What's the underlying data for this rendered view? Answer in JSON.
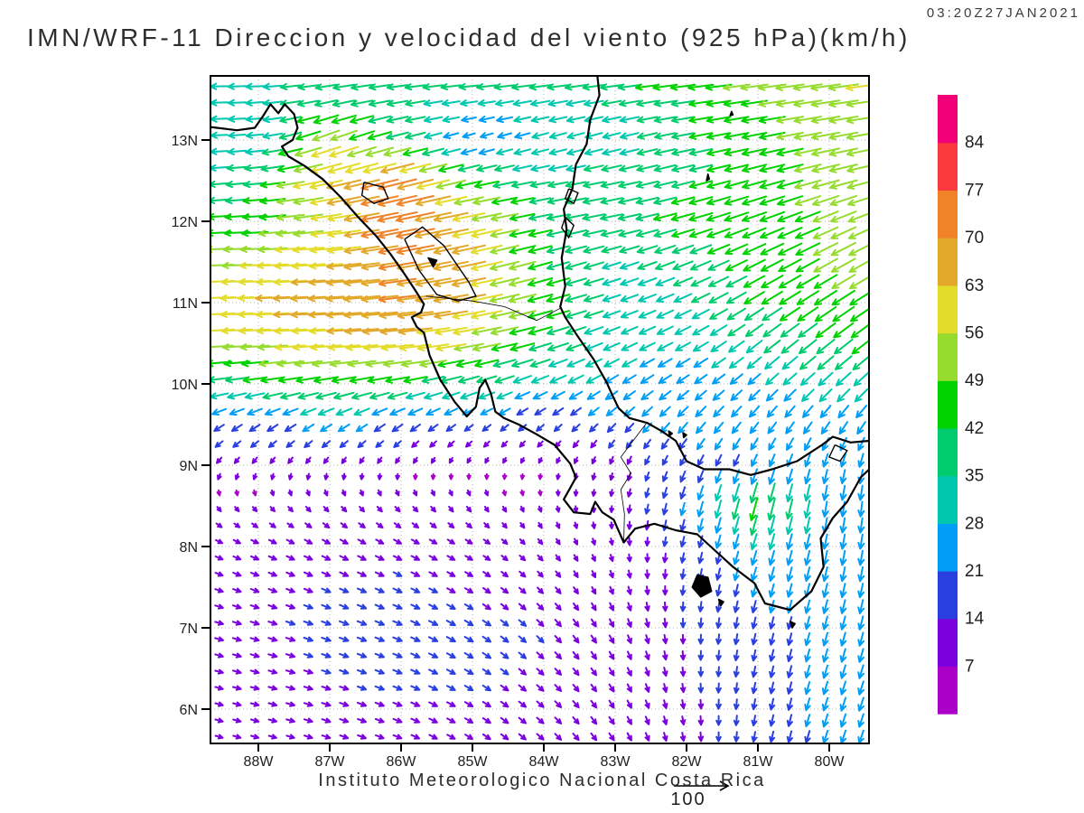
{
  "header": {
    "timestamp": "03:20Z27JAN2021",
    "title": "IMN/WRF-11 Direccion y velocidad del viento (925 hPa)(km/h)"
  },
  "footer": {
    "institution": "Instituto Meteorologico Nacional Costa Rica",
    "reference_value": "100"
  },
  "axes": {
    "lat_labels": [
      "13N",
      "12N",
      "11N",
      "10N",
      "9N",
      "8N",
      "7N",
      "6N"
    ],
    "lat_values": [
      13,
      12,
      11,
      10,
      9,
      8,
      7,
      6
    ],
    "lon_labels": [
      "88W",
      "87W",
      "86W",
      "85W",
      "84W",
      "83W",
      "82W",
      "81W",
      "80W"
    ],
    "lon_values": [
      -88,
      -87,
      -86,
      -85,
      -84,
      -83,
      -82,
      -81,
      -80
    ]
  },
  "colorbar": {
    "labels_top_to_bottom": [
      "84",
      "77",
      "70",
      "63",
      "56",
      "49",
      "42",
      "35",
      "28",
      "21",
      "14",
      "7"
    ],
    "colors_low_to_high": [
      "#AA00C8",
      "#7A00DE",
      "#2A3FE0",
      "#009EF5",
      "#00C8AE",
      "#00CC6E",
      "#00D200",
      "#95DC2E",
      "#E3DC2B",
      "#E3A92B",
      "#F08228",
      "#FA3A3C",
      "#F20077"
    ]
  },
  "chart_data": {
    "type": "vector_field",
    "title": "IMN/WRF-11 Direccion y velocidad del viento (925 hPa)(km/h)",
    "valid_time": "03:20Z27JAN2021",
    "level": "925 hPa",
    "units": "km/h",
    "lon_range": [
      -88.67,
      -79.44
    ],
    "lat_range": [
      5.58,
      13.79
    ],
    "speed_levels": [
      7,
      14,
      21,
      28,
      35,
      42,
      49,
      56,
      63,
      70,
      77,
      84
    ],
    "reference_speed": 100,
    "arrow_step_lon": 0.25,
    "arrow_step_lat": 0.2,
    "grid_lons": [
      -89,
      -88,
      -87,
      -86,
      -85,
      -84,
      -83,
      -82,
      -81,
      -80,
      -79
    ],
    "grid_lats": [
      14,
      13.5,
      13,
      12.5,
      12,
      11.5,
      11,
      10.5,
      10,
      9.5,
      9,
      8.5,
      8,
      7,
      6,
      5.5
    ],
    "u": [
      [
        -32,
        -33,
        -36,
        -40,
        -45,
        -48,
        -50,
        -52,
        -55,
        -58,
        -60
      ],
      [
        -30,
        -32,
        -40,
        -36,
        -30,
        -34,
        -35,
        -42,
        -48,
        -53,
        -57
      ],
      [
        -28,
        -30,
        -52,
        -40,
        -18,
        -28,
        -30,
        -40,
        -45,
        -52,
        -56
      ],
      [
        -34,
        -40,
        -62,
        -72,
        -45,
        -34,
        -38,
        -40,
        -44,
        -50,
        -54
      ],
      [
        -40,
        -46,
        -56,
        -76,
        -60,
        -40,
        -40,
        -42,
        -44,
        -46,
        -48
      ],
      [
        -50,
        -56,
        -62,
        -70,
        -62,
        -42,
        -32,
        -36,
        -40,
        -44,
        -45
      ],
      [
        -60,
        -64,
        -68,
        -70,
        -62,
        -45,
        -30,
        -30,
        -36,
        -40,
        -42
      ],
      [
        -52,
        -56,
        -60,
        -62,
        -55,
        -40,
        -28,
        -26,
        -28,
        -33,
        -35
      ],
      [
        -36,
        -40,
        -42,
        -40,
        -34,
        -28,
        -22,
        -20,
        -20,
        -24,
        -26
      ],
      [
        -16,
        -18,
        -20,
        -18,
        -14,
        -12,
        -14,
        -16,
        -14,
        -14,
        -14
      ],
      [
        -6,
        -5,
        -4,
        -3,
        -2,
        -2,
        -3,
        -8,
        -8,
        -6,
        -5
      ],
      [
        4,
        5,
        6,
        6,
        5,
        2,
        -1,
        -6,
        -12,
        -4,
        -2
      ],
      [
        10,
        11,
        12,
        12,
        10,
        6,
        2,
        -4,
        -8,
        -5,
        -3
      ],
      [
        12,
        13,
        14,
        14,
        13,
        10,
        6,
        0,
        -4,
        -6,
        -6
      ],
      [
        11,
        12,
        13,
        13,
        12,
        10,
        7,
        2,
        -3,
        -7,
        -8
      ],
      [
        10,
        11,
        12,
        12,
        11,
        10,
        7,
        2,
        -3,
        -7,
        -8
      ]
    ],
    "v": [
      [
        0,
        0,
        -2,
        -3,
        -3,
        -3,
        -4,
        -5,
        -6,
        -7,
        -7
      ],
      [
        0,
        -2,
        -8,
        -6,
        -4,
        -6,
        -6,
        -6,
        -7,
        -8,
        -8
      ],
      [
        0,
        -3,
        -20,
        -10,
        -6,
        -8,
        -8,
        -8,
        -9,
        -10,
        -10
      ],
      [
        -2,
        -4,
        -14,
        -18,
        -10,
        -6,
        -8,
        -10,
        -12,
        -13,
        -13
      ],
      [
        -2,
        -3,
        -8,
        -16,
        -12,
        -8,
        -8,
        -12,
        -16,
        -19,
        -20
      ],
      [
        -2,
        -2,
        -5,
        -12,
        -14,
        -12,
        -10,
        -14,
        -20,
        -24,
        -25
      ],
      [
        -2,
        -2,
        -4,
        -8,
        -12,
        -12,
        -10,
        -14,
        -22,
        -26,
        -27
      ],
      [
        -3,
        -3,
        -4,
        -6,
        -10,
        -12,
        -12,
        -14,
        -22,
        -26,
        -27
      ],
      [
        -5,
        -6,
        -8,
        -8,
        -10,
        -12,
        -14,
        -14,
        -18,
        -22,
        -24
      ],
      [
        -10,
        -11,
        -12,
        -12,
        -10,
        -10,
        -14,
        -18,
        -18,
        -20,
        -20
      ],
      [
        -8,
        -8,
        -8,
        -7,
        -6,
        -6,
        -10,
        -16,
        -20,
        -22,
        -24
      ],
      [
        -6,
        -6,
        -7,
        -7,
        -7,
        -7,
        -9,
        -22,
        -44,
        -26,
        -26
      ],
      [
        -4,
        -5,
        -6,
        -6,
        -6,
        -7,
        -9,
        -16,
        -26,
        -25,
        -25
      ],
      [
        -3,
        -4,
        -5,
        -6,
        -8,
        -10,
        -12,
        -14,
        -18,
        -22,
        -24
      ],
      [
        -3,
        -3,
        -4,
        -5,
        -7,
        -9,
        -11,
        -13,
        -17,
        -22,
        -23
      ],
      [
        -3,
        -3,
        -4,
        -5,
        -7,
        -9,
        -11,
        -13,
        -16,
        -21,
        -22
      ]
    ]
  },
  "map": {
    "coastline_pacific": [
      [
        -88.67,
        13.16
      ],
      [
        -88.3,
        13.12
      ],
      [
        -88.05,
        13.15
      ],
      [
        -87.93,
        13.3
      ],
      [
        -87.83,
        13.44
      ],
      [
        -87.72,
        13.33
      ],
      [
        -87.63,
        13.44
      ],
      [
        -87.5,
        13.32
      ],
      [
        -87.45,
        13.15
      ],
      [
        -87.52,
        13.0
      ],
      [
        -87.67,
        12.92
      ],
      [
        -87.58,
        12.8
      ],
      [
        -87.35,
        12.68
      ],
      [
        -87.1,
        12.52
      ],
      [
        -86.85,
        12.3
      ],
      [
        -86.6,
        12.05
      ],
      [
        -86.35,
        11.82
      ],
      [
        -86.15,
        11.6
      ],
      [
        -85.95,
        11.35
      ],
      [
        -85.8,
        11.15
      ],
      [
        -85.68,
        10.98
      ],
      [
        -85.72,
        10.88
      ],
      [
        -85.85,
        10.82
      ],
      [
        -85.78,
        10.7
      ],
      [
        -85.68,
        10.63
      ],
      [
        -85.6,
        10.35
      ],
      [
        -85.45,
        10.05
      ],
      [
        -85.25,
        9.78
      ],
      [
        -85.08,
        9.6
      ],
      [
        -84.95,
        9.72
      ],
      [
        -84.9,
        9.95
      ],
      [
        -84.82,
        10.05
      ],
      [
        -84.74,
        9.88
      ],
      [
        -84.68,
        9.66
      ],
      [
        -84.56,
        9.58
      ],
      [
        -84.35,
        9.5
      ],
      [
        -84.1,
        9.38
      ],
      [
        -83.85,
        9.25
      ],
      [
        -83.63,
        9.02
      ],
      [
        -83.55,
        8.85
      ],
      [
        -83.63,
        8.72
      ],
      [
        -83.72,
        8.58
      ],
      [
        -83.58,
        8.42
      ],
      [
        -83.35,
        8.4
      ],
      [
        -83.28,
        8.55
      ],
      [
        -83.18,
        8.42
      ],
      [
        -83.02,
        8.33
      ],
      [
        -82.88,
        8.05
      ],
      [
        -82.72,
        8.22
      ],
      [
        -82.45,
        8.28
      ],
      [
        -82.15,
        8.2
      ],
      [
        -81.85,
        8.15
      ],
      [
        -81.6,
        7.95
      ],
      [
        -81.35,
        7.75
      ],
      [
        -81.05,
        7.55
      ],
      [
        -80.9,
        7.3
      ],
      [
        -80.55,
        7.22
      ],
      [
        -80.25,
        7.45
      ],
      [
        -80.08,
        7.75
      ],
      [
        -80.12,
        8.1
      ],
      [
        -79.95,
        8.35
      ],
      [
        -79.75,
        8.55
      ],
      [
        -79.56,
        8.85
      ],
      [
        -79.44,
        8.95
      ]
    ],
    "coastline_caribbean": [
      [
        -79.44,
        9.3
      ],
      [
        -79.7,
        9.28
      ],
      [
        -79.95,
        9.35
      ],
      [
        -80.1,
        9.25
      ],
      [
        -80.45,
        9.05
      ],
      [
        -80.8,
        8.95
      ],
      [
        -81.1,
        8.88
      ],
      [
        -81.4,
        8.95
      ],
      [
        -81.75,
        8.95
      ],
      [
        -82.0,
        9.05
      ],
      [
        -82.15,
        9.3
      ],
      [
        -82.35,
        9.42
      ],
      [
        -82.55,
        9.52
      ],
      [
        -82.8,
        9.58
      ],
      [
        -82.95,
        9.7
      ],
      [
        -83.05,
        9.88
      ],
      [
        -83.12,
        10.02
      ],
      [
        -83.3,
        10.3
      ],
      [
        -83.52,
        10.58
      ],
      [
        -83.7,
        10.82
      ],
      [
        -83.77,
        10.95
      ],
      [
        -83.7,
        11.2
      ],
      [
        -83.75,
        11.55
      ],
      [
        -83.68,
        11.9
      ],
      [
        -83.72,
        12.15
      ],
      [
        -83.6,
        12.4
      ],
      [
        -83.55,
        12.7
      ],
      [
        -83.4,
        12.95
      ],
      [
        -83.35,
        13.25
      ],
      [
        -83.22,
        13.55
      ],
      [
        -83.25,
        13.79
      ]
    ],
    "lakes": [
      [
        [
          -85.95,
          11.78
        ],
        [
          -85.7,
          11.93
        ],
        [
          -85.4,
          11.7
        ],
        [
          -85.05,
          11.25
        ],
        [
          -84.95,
          11.08
        ],
        [
          -85.2,
          11.02
        ],
        [
          -85.5,
          11.1
        ],
        [
          -85.75,
          11.4
        ],
        [
          -85.95,
          11.78
        ]
      ],
      [
        [
          -86.52,
          12.48
        ],
        [
          -86.25,
          12.42
        ],
        [
          -86.18,
          12.28
        ],
        [
          -86.38,
          12.22
        ],
        [
          -86.55,
          12.32
        ],
        [
          -86.52,
          12.48
        ]
      ],
      [
        [
          -83.65,
          12.4
        ],
        [
          -83.52,
          12.35
        ],
        [
          -83.58,
          12.22
        ],
        [
          -83.7,
          12.28
        ],
        [
          -83.65,
          12.4
        ]
      ],
      [
        [
          -83.7,
          12.05
        ],
        [
          -83.58,
          11.95
        ],
        [
          -83.65,
          11.8
        ],
        [
          -83.75,
          11.92
        ],
        [
          -83.7,
          12.05
        ]
      ],
      [
        [
          -79.92,
          9.25
        ],
        [
          -79.75,
          9.18
        ],
        [
          -79.85,
          9.05
        ],
        [
          -80.0,
          9.1
        ],
        [
          -79.92,
          9.25
        ]
      ]
    ],
    "islands": [
      [
        [
          -85.62,
          11.55
        ],
        [
          -85.5,
          11.52
        ],
        [
          -85.55,
          11.44
        ],
        [
          -85.62,
          11.55
        ]
      ],
      [
        [
          -81.85,
          7.65
        ],
        [
          -81.7,
          7.62
        ],
        [
          -81.65,
          7.45
        ],
        [
          -81.8,
          7.38
        ],
        [
          -81.92,
          7.5
        ],
        [
          -81.85,
          7.65
        ]
      ],
      [
        [
          -81.55,
          7.35
        ],
        [
          -81.48,
          7.32
        ],
        [
          -81.52,
          7.27
        ],
        [
          -81.55,
          7.35
        ]
      ],
      [
        [
          -80.55,
          7.08
        ],
        [
          -80.48,
          7.05
        ],
        [
          -80.52,
          7.0
        ],
        [
          -80.55,
          7.08
        ]
      ],
      [
        [
          -82.25,
          9.42
        ],
        [
          -82.2,
          9.39
        ],
        [
          -82.24,
          9.36
        ],
        [
          -82.25,
          9.42
        ]
      ],
      [
        [
          -82.05,
          9.4
        ],
        [
          -82.0,
          9.37
        ],
        [
          -82.04,
          9.34
        ],
        [
          -82.05,
          9.4
        ]
      ],
      [
        [
          -81.7,
          12.58
        ],
        [
          -81.72,
          12.5
        ],
        [
          -81.68,
          12.52
        ],
        [
          -81.7,
          12.58
        ]
      ],
      [
        [
          -81.37,
          13.35
        ],
        [
          -81.39,
          13.3
        ],
        [
          -81.35,
          13.31
        ],
        [
          -81.37,
          13.35
        ]
      ]
    ],
    "borders": [
      [
        [
          -85.65,
          11.08
        ],
        [
          -85.0,
          11.02
        ],
        [
          -84.55,
          10.95
        ],
        [
          -84.1,
          10.78
        ],
        [
          -83.77,
          10.93
        ]
      ],
      [
        [
          -82.56,
          9.52
        ],
        [
          -82.75,
          9.3
        ],
        [
          -82.92,
          9.1
        ],
        [
          -82.78,
          8.9
        ],
        [
          -82.92,
          8.7
        ],
        [
          -82.87,
          8.4
        ],
        [
          -82.88,
          8.05
        ]
      ]
    ]
  }
}
